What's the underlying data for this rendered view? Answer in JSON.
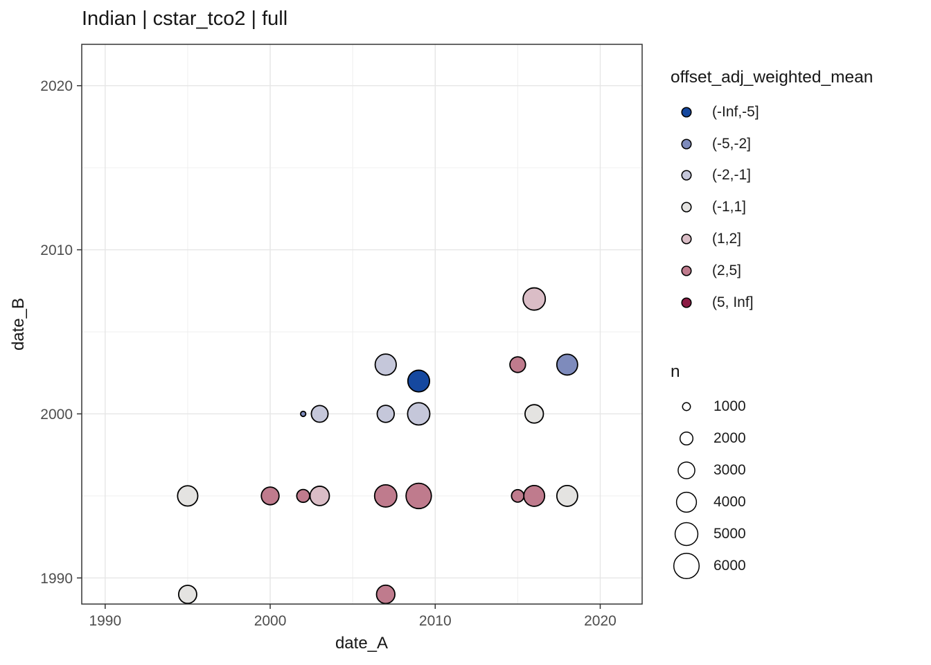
{
  "title": "Indian | cstar_tco2 | full",
  "axes": {
    "x_label": "date_A",
    "y_label": "date_B"
  },
  "colors": {
    "panel_background": "#ffffff",
    "panel_border": "#333333",
    "grid_major": "#e6e6e6",
    "grid_minor": "#f0f0f0",
    "tick_mark": "#333333",
    "tick_label": "#4d4d4d",
    "point_stroke": "#000000",
    "text": "#161616"
  },
  "legends": {
    "color": {
      "title": "offset_adj_weighted_mean",
      "items": [
        {
          "label": "(-Inf,-5]",
          "color": "#15489F"
        },
        {
          "label": "(-5,-2]",
          "color": "#7E8BBC"
        },
        {
          "label": "(-2,-1]",
          "color": "#C5C7DA"
        },
        {
          "label": "(-1,1]",
          "color": "#E4E3E1"
        },
        {
          "label": "(1,2]",
          "color": "#DABDC6"
        },
        {
          "label": "(2,5]",
          "color": "#BF7B8D"
        },
        {
          "label": "(5, Inf]",
          "color": "#8B1B44"
        }
      ]
    },
    "size": {
      "title": "n",
      "items": [
        1000,
        2000,
        3000,
        4000,
        5000,
        6000
      ]
    }
  },
  "chart_data": {
    "type": "scatter",
    "title": "Indian | cstar_tco2 | full",
    "xlabel": "date_A",
    "ylabel": "date_B",
    "x_range": [
      1988.58,
      2022.54
    ],
    "y_range": [
      1988.41,
      2022.52
    ],
    "x_ticks": [
      1990,
      2000,
      2010,
      2020
    ],
    "y_ticks": [
      1990,
      2000,
      2010,
      2020
    ],
    "x_minor_ticks": [
      1995,
      2005,
      2015
    ],
    "y_minor_ticks": [
      1995,
      2005,
      2015
    ],
    "grid": true,
    "legend_position": "right",
    "color_variable": "offset_adj_weighted_mean",
    "size_variable": "n",
    "points": [
      {
        "date_A": 1995,
        "date_B": 1989,
        "n": 3400,
        "offset_bin": "(-1,1]"
      },
      {
        "date_A": 1995,
        "date_B": 1995,
        "n": 4100,
        "offset_bin": "(-1,1]"
      },
      {
        "date_A": 2000,
        "date_B": 1995,
        "n": 3300,
        "offset_bin": "(2,5]"
      },
      {
        "date_A": 2003,
        "date_B": 1995,
        "n": 3800,
        "offset_bin": "(1,2]"
      },
      {
        "date_A": 2002,
        "date_B": 1995,
        "n": 2000,
        "offset_bin": "(2,5]"
      },
      {
        "date_A": 2007,
        "date_B": 1995,
        "n": 4800,
        "offset_bin": "(2,5]"
      },
      {
        "date_A": 2009,
        "date_B": 1995,
        "n": 6000,
        "offset_bin": "(2,5]"
      },
      {
        "date_A": 2007,
        "date_B": 1989,
        "n": 3500,
        "offset_bin": "(2,5]"
      },
      {
        "date_A": 2002,
        "date_B": 2000,
        "n": 600,
        "offset_bin": "(-5,-2]"
      },
      {
        "date_A": 2003,
        "date_B": 2000,
        "n": 3000,
        "offset_bin": "(-2,-1]"
      },
      {
        "date_A": 2007,
        "date_B": 2000,
        "n": 3100,
        "offset_bin": "(-2,-1]"
      },
      {
        "date_A": 2009,
        "date_B": 2000,
        "n": 4800,
        "offset_bin": "(-2,-1]"
      },
      {
        "date_A": 2007,
        "date_B": 2003,
        "n": 4400,
        "offset_bin": "(-2,-1]"
      },
      {
        "date_A": 2009,
        "date_B": 2002,
        "n": 4600,
        "offset_bin": "(-Inf,-5]"
      },
      {
        "date_A": 2015,
        "date_B": 2003,
        "n": 2700,
        "offset_bin": "(2,5]"
      },
      {
        "date_A": 2016,
        "date_B": 2000,
        "n": 3500,
        "offset_bin": "(-1,1]"
      },
      {
        "date_A": 2016,
        "date_B": 2007,
        "n": 4800,
        "offset_bin": "(1,2]"
      },
      {
        "date_A": 2018,
        "date_B": 2003,
        "n": 4300,
        "offset_bin": "(-5,-2]"
      },
      {
        "date_A": 2015,
        "date_B": 1995,
        "n": 1900,
        "offset_bin": "(2,5]"
      },
      {
        "date_A": 2016,
        "date_B": 1995,
        "n": 4300,
        "offset_bin": "(2,5]"
      },
      {
        "date_A": 2018,
        "date_B": 1995,
        "n": 4300,
        "offset_bin": "(-1,1]"
      }
    ]
  }
}
